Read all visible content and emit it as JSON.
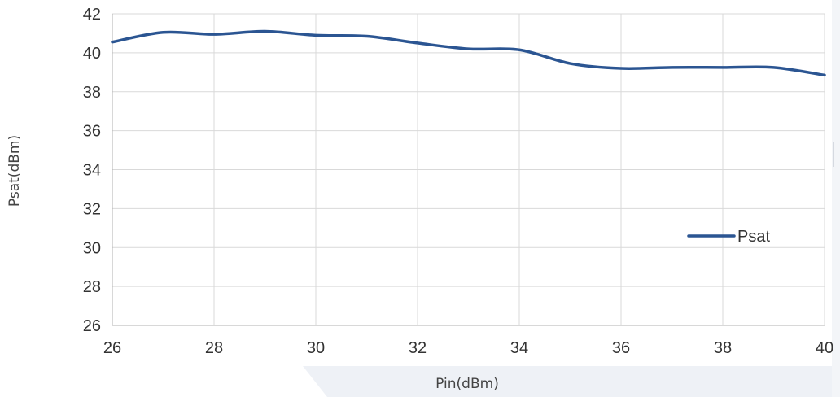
{
  "chart_data": {
    "type": "line",
    "xlabel": "Pin(dBm)",
    "ylabel": "Psat(dBm)",
    "xlim": [
      26,
      40
    ],
    "ylim": [
      26,
      42
    ],
    "x_ticks": [
      26,
      28,
      30,
      32,
      34,
      36,
      38,
      40
    ],
    "y_ticks": [
      26,
      28,
      30,
      32,
      34,
      36,
      38,
      40,
      42
    ],
    "grid": true,
    "legend_position": "lower-right",
    "series": [
      {
        "name": "Psat",
        "color": "#2b5592",
        "x": [
          26,
          27,
          28,
          29,
          30,
          31,
          32,
          33,
          34,
          35,
          36,
          37,
          38,
          39,
          40
        ],
        "y": [
          40.55,
          41.05,
          40.95,
          41.1,
          40.9,
          40.85,
          40.5,
          40.2,
          40.15,
          39.45,
          39.2,
          39.25,
          39.25,
          39.25,
          38.85
        ]
      }
    ]
  }
}
